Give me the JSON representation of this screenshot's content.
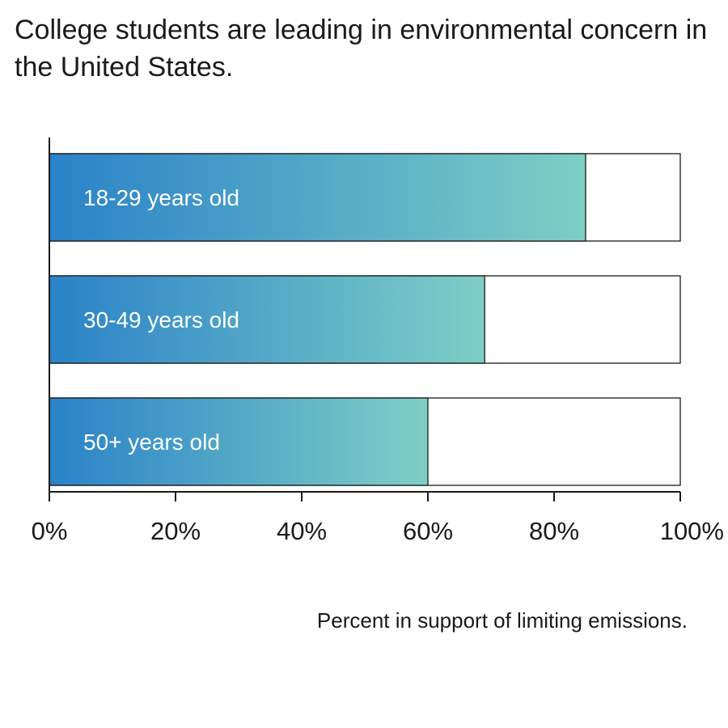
{
  "chart_data": {
    "type": "bar",
    "orientation": "horizontal",
    "title": "College students are leading in environmental concern in the United States.",
    "categories": [
      "18-29 years old",
      "30-49 years old",
      "50+ years old"
    ],
    "values": [
      85,
      69,
      60
    ],
    "xlim": [
      0,
      100
    ],
    "unit": "%",
    "xticks": [
      "0%",
      "20%",
      "40%",
      "60%",
      "80%",
      "100%"
    ],
    "xlabel": "Percent in support of limiting emissions.",
    "grid": false,
    "legend": "none",
    "colors": {
      "gradient_start": "#2a82c9",
      "gradient_end": "#7ecfc5",
      "track_fill": "#ffffff",
      "outline": "#1a1a1a"
    }
  }
}
